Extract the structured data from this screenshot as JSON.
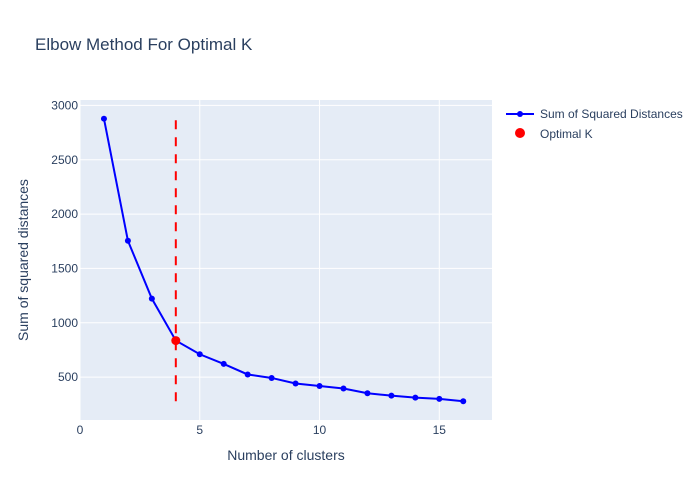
{
  "colors": {
    "plot_bg": "#e5ecf6",
    "grid": "#ffffff",
    "series_line": "#0000ff",
    "optimal_point": "#ff0000",
    "vertical_line": "#ff0000",
    "text": "#2a3f5f"
  },
  "chart_data": {
    "type": "line",
    "title": "Elbow Method For Optimal K",
    "xlabel": "Number of clusters",
    "ylabel": "Sum of squared distances",
    "xlim": [
      0,
      17.2
    ],
    "ylim": [
      105,
      3050
    ],
    "x_ticks": [
      0,
      5,
      10,
      15
    ],
    "y_ticks": [
      500,
      1000,
      1500,
      2000,
      2500,
      3000
    ],
    "grid": true,
    "legend_position": "top-right",
    "series": [
      {
        "name": "Sum of Squared Distances",
        "mode": "lines+markers",
        "x": [
          1,
          2,
          3,
          4,
          5,
          6,
          7,
          8,
          9,
          10,
          11,
          12,
          13,
          14,
          15,
          16
        ],
        "y": [
          2878,
          1755,
          1222,
          836,
          710,
          621,
          524,
          492,
          441,
          418,
          395,
          351,
          329,
          311,
          299,
          278
        ]
      },
      {
        "name": "Optimal K",
        "mode": "markers",
        "x": [
          4
        ],
        "y": [
          836
        ]
      }
    ],
    "vertical_line": {
      "x": 4,
      "y_from": 278,
      "y_to": 2878,
      "style": "dashed"
    }
  }
}
